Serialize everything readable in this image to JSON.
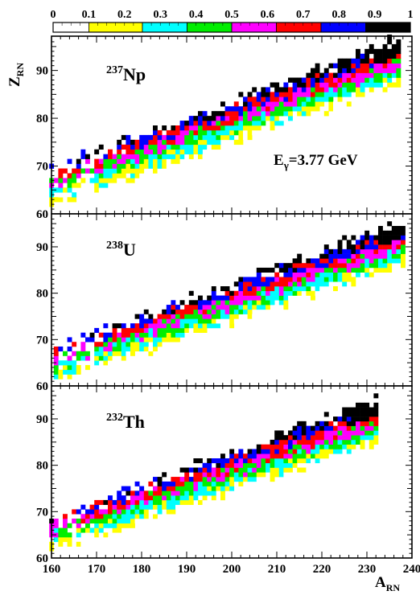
{
  "figure": {
    "ylabel": {
      "main": "Z",
      "sub": "RN"
    },
    "xlabel": {
      "main": "A",
      "sub": "RN"
    },
    "energy": {
      "prefix": "E",
      "sub": "γ",
      "rest": "=3.77 GeV"
    }
  },
  "color_scale": {
    "labels": [
      "0",
      "0.1",
      "0.2",
      "0.3",
      "0.4",
      "0.5",
      "0.6",
      "0.7",
      "0.8",
      "0.9",
      "1"
    ],
    "colors": [
      "#ffffff",
      "#ffff00",
      "#00ffff",
      "#00ee00",
      "#ff00ff",
      "#ff0000",
      "#0000ff",
      "#000000"
    ],
    "thresholds": [
      0.12,
      0.25,
      0.38,
      0.5,
      0.62,
      0.75,
      0.87
    ]
  },
  "chart_data": [
    {
      "type": "heatmap",
      "title": "",
      "panel_label": {
        "superscript": "237",
        "symbol": "Np"
      },
      "show_energy": true,
      "xlabel": "",
      "ylabel": "",
      "xlim": [
        160,
        240
      ],
      "ylim": [
        60,
        97
      ],
      "x_ticks": [
        "160",
        "170",
        "180",
        "190",
        "200",
        "210",
        "220",
        "230",
        "240"
      ],
      "y_ticks": [
        "60",
        "70",
        "80",
        "90"
      ],
      "band": {
        "A_start": 160,
        "A_end": 237,
        "Z_start": 65,
        "Z_end": 92.5,
        "half_width": 5.5,
        "seed": 11
      }
    },
    {
      "type": "heatmap",
      "title": "",
      "panel_label": {
        "superscript": "238",
        "symbol": "U"
      },
      "show_energy": false,
      "xlabel": "",
      "ylabel": "",
      "xlim": [
        160,
        240
      ],
      "ylim": [
        60,
        97
      ],
      "x_ticks": [
        "160",
        "170",
        "180",
        "190",
        "200",
        "210",
        "220",
        "230",
        "240"
      ],
      "y_ticks": [
        "60",
        "70",
        "80",
        "90"
      ],
      "band": {
        "A_start": 161,
        "A_end": 238,
        "Z_start": 64,
        "Z_end": 91.5,
        "half_width": 5.5,
        "seed": 23
      }
    },
    {
      "type": "heatmap",
      "title": "",
      "panel_label": {
        "superscript": "232",
        "symbol": "Th"
      },
      "show_energy": false,
      "xlabel": "",
      "ylabel": "",
      "xlim": [
        160,
        240
      ],
      "ylim": [
        60,
        97
      ],
      "x_ticks": [
        "160",
        "170",
        "180",
        "190",
        "200",
        "210",
        "220",
        "230",
        "240"
      ],
      "y_ticks": [
        "60",
        "70",
        "80",
        "90"
      ],
      "band": {
        "A_start": 160,
        "A_end": 232,
        "Z_start": 64.5,
        "Z_end": 90,
        "half_width": 5.5,
        "seed": 37
      }
    }
  ]
}
